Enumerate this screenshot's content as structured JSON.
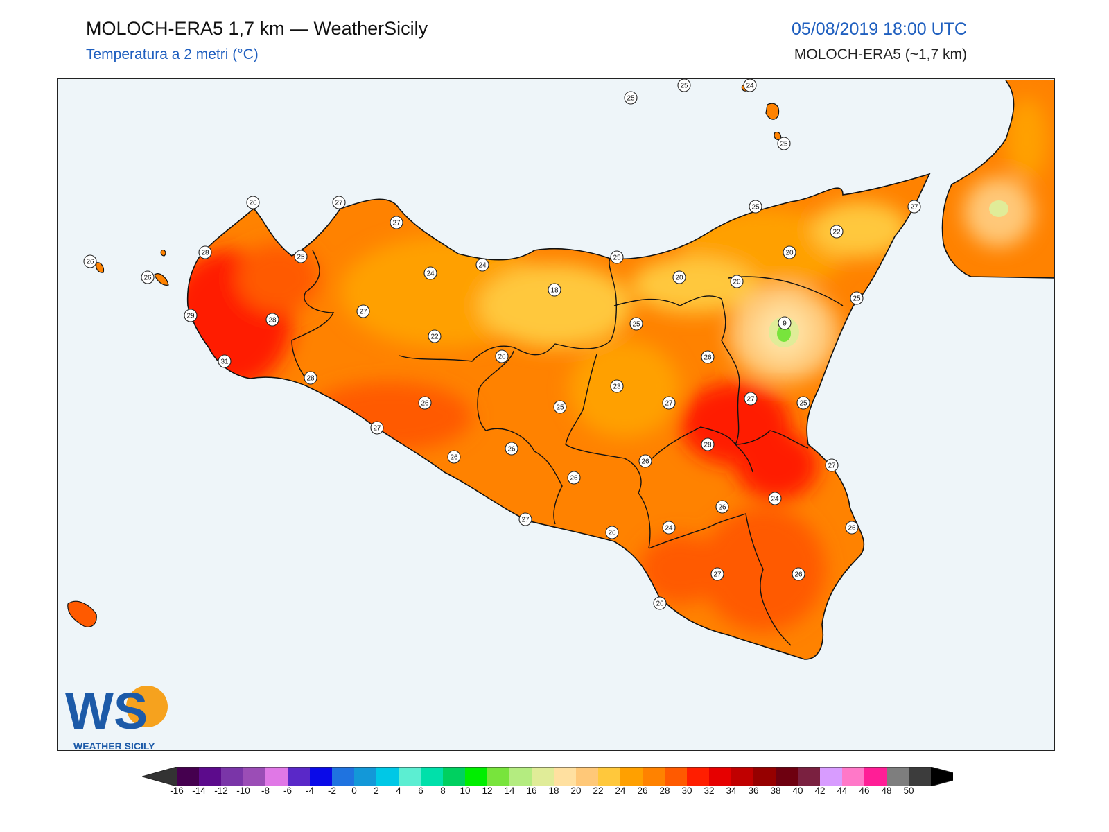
{
  "header": {
    "title": "MOLOCH-ERA5 1,7 km — WeatherSicily",
    "subtitle": "Temperatura a 2 metri (°C)",
    "datetime": "05/08/2019 18:00 UTC",
    "model": "MOLOCH-ERA5 (~1,7 km)"
  },
  "logo": {
    "letters": "WS",
    "text": "WEATHER SICILY"
  },
  "colorbar": {
    "ticks": [
      "-16",
      "-14",
      "-12",
      "-10",
      "-8",
      "-6",
      "-4",
      "-2",
      "0",
      "2",
      "4",
      "6",
      "8",
      "10",
      "12",
      "14",
      "16",
      "18",
      "20",
      "22",
      "24",
      "26",
      "28",
      "30",
      "32",
      "34",
      "36",
      "38",
      "40",
      "42",
      "44",
      "46",
      "48",
      "50"
    ],
    "colors": [
      "#45004f",
      "#5c0b8c",
      "#7a35a8",
      "#9b4db6",
      "#e078e6",
      "#5a28c8",
      "#0a0ae8",
      "#1f73e0",
      "#1398d8",
      "#00c8e6",
      "#5ceed2",
      "#00e0aa",
      "#00d060",
      "#00ee00",
      "#78e43c",
      "#b4ec80",
      "#e0ec98",
      "#ffe0a0",
      "#ffc878",
      "#ffc83c",
      "#ffa000",
      "#ff8200",
      "#ff5a00",
      "#ff1e00",
      "#e60000",
      "#c00000",
      "#960000",
      "#6e0010",
      "#7a2040",
      "#d89cff",
      "#ff78c8",
      "#ff1e96",
      "#7e7e7e",
      "#3c3c3c"
    ],
    "under_color": "#333333",
    "over_color": "#000000"
  },
  "stations": [
    {
      "v": "25"
    },
    {
      "v": "25"
    },
    {
      "v": "24"
    },
    {
      "v": "25"
    },
    {
      "v": "26"
    },
    {
      "v": "27"
    },
    {
      "v": "27"
    },
    {
      "v": "28"
    },
    {
      "v": "25"
    },
    {
      "v": "26"
    },
    {
      "v": "26"
    },
    {
      "v": "29"
    },
    {
      "v": "28"
    },
    {
      "v": "31"
    },
    {
      "v": "27"
    },
    {
      "v": "24"
    },
    {
      "v": "24"
    },
    {
      "v": "22"
    },
    {
      "v": "18"
    },
    {
      "v": "25"
    },
    {
      "v": "25"
    },
    {
      "v": "27"
    },
    {
      "v": "22"
    },
    {
      "v": "20"
    },
    {
      "v": "20"
    },
    {
      "v": "20"
    },
    {
      "v": "25"
    },
    {
      "v": "9"
    },
    {
      "v": "25"
    },
    {
      "v": "26"
    },
    {
      "v": "26"
    },
    {
      "v": "23"
    },
    {
      "v": "28"
    },
    {
      "v": "26"
    },
    {
      "v": "27"
    },
    {
      "v": "27"
    },
    {
      "v": "25"
    },
    {
      "v": "25"
    },
    {
      "v": "27"
    },
    {
      "v": "28"
    },
    {
      "v": "26"
    },
    {
      "v": "26"
    },
    {
      "v": "26"
    },
    {
      "v": "27"
    },
    {
      "v": "26"
    },
    {
      "v": "24"
    },
    {
      "v": "26"
    },
    {
      "v": "27"
    },
    {
      "v": "24"
    },
    {
      "v": "26"
    },
    {
      "v": "26"
    },
    {
      "v": "27"
    },
    {
      "v": "26"
    },
    {
      "v": "26"
    }
  ]
}
